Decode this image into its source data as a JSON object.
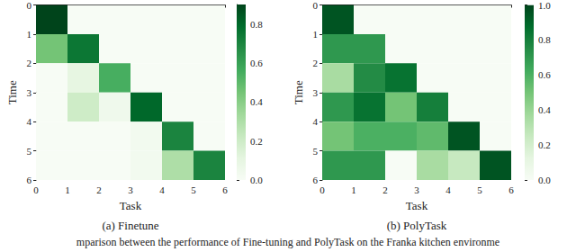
{
  "chart_data": [
    {
      "type": "heatmap",
      "title": "(a) Finetune",
      "x_label": "Task",
      "y_label": "Time",
      "xlim": [
        0,
        6
      ],
      "xticks": [
        0,
        1,
        2,
        3,
        4,
        5,
        6
      ],
      "ylim": [
        0,
        6
      ],
      "yticks": [
        0,
        1,
        2,
        3,
        4,
        5,
        6
      ],
      "color": "Greens",
      "cells": [
        [
          0.9,
          0,
          0,
          0,
          0,
          0
        ],
        [
          0.45,
          0.75,
          0,
          0,
          0,
          0
        ],
        [
          0,
          0.1,
          0.55,
          0,
          0,
          0
        ],
        [
          0,
          0.2,
          0.05,
          0.8,
          0,
          0
        ],
        [
          0,
          0,
          0,
          0.03,
          0.7,
          0
        ],
        [
          0,
          0,
          0,
          0.03,
          0.3,
          0.7
        ]
      ],
      "colorbar_range": [
        0,
        0.9
      ],
      "colorbar_ticks": [
        {
          "value": 0,
          "label": "0.0"
        },
        {
          "value": 0.2,
          "label": "0.2"
        },
        {
          "value": 0.4,
          "label": "0.4"
        },
        {
          "value": 0.6,
          "label": "0.6"
        },
        {
          "value": 0.8,
          "label": "0.8"
        }
      ]
    },
    {
      "type": "heatmap",
      "title": "(b) PolyTask",
      "x_label": "Task",
      "y_label": "Time",
      "xlim": [
        0,
        6
      ],
      "xticks": [
        0,
        1,
        2,
        3,
        4,
        5,
        6
      ],
      "ylim": [
        0,
        6
      ],
      "yticks": [
        0,
        1,
        2,
        3,
        4,
        5,
        6
      ],
      "color": "Greens",
      "cells": [
        [
          0.95,
          0,
          0,
          0,
          0,
          0
        ],
        [
          0.7,
          0.7,
          0,
          0,
          0,
          0
        ],
        [
          0.35,
          0.75,
          0.85,
          0,
          0,
          0
        ],
        [
          0.7,
          0.85,
          0.5,
          0.8,
          0,
          0
        ],
        [
          0.5,
          0.6,
          0.6,
          0.55,
          0.95,
          0
        ],
        [
          0.7,
          0.7,
          0,
          0.35,
          0.25,
          0.95
        ]
      ],
      "colorbar_range": [
        0,
        1
      ],
      "colorbar_ticks": [
        {
          "value": 0,
          "label": "0.0"
        },
        {
          "value": 0.2,
          "label": "0.2"
        },
        {
          "value": 0.4,
          "label": "0.4"
        },
        {
          "value": 0.6,
          "label": "0.6"
        },
        {
          "value": 0.8,
          "label": "0.8"
        },
        {
          "value": 1,
          "label": "1.0"
        }
      ]
    }
  ],
  "caption": "mparison between the performance of Fine-tuning and PolyTask on the Franka kitchen environme"
}
